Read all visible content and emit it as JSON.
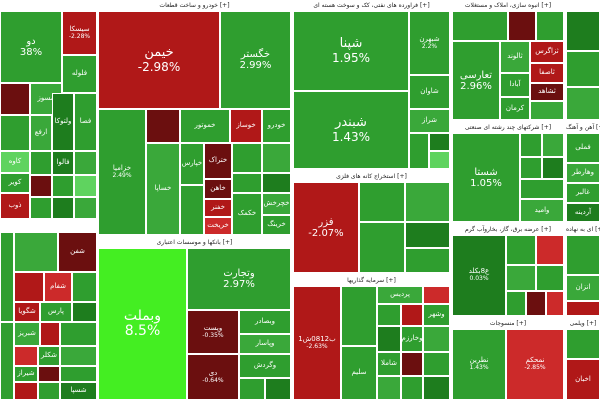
{
  "sectors": {
    "s1": {
      "title": "",
      "tiles": [
        {
          "name": "دو",
          "change": "38%"
        },
        {
          "name": "سیسکا",
          "change": "-2.28%"
        },
        {
          "name": "مسوز"
        },
        {
          "name": "فلوله"
        },
        {
          "name": "ارفع"
        },
        {
          "name": "ولتوکا"
        },
        {
          "name": "فصا"
        },
        {
          "name": "فالوا"
        },
        {
          "name": "کاوه"
        },
        {
          "name": "کویر"
        },
        {
          "name": "ذوب"
        }
      ]
    },
    "s2": {
      "title": "خودرو و ساخت قطعات [+]",
      "tiles": [
        {
          "name": "خیمن",
          "change": "-2.98%"
        },
        {
          "name": "خگستر",
          "change": "2.99%"
        },
        {
          "name": "خودرو"
        },
        {
          "name": "خساپا"
        },
        {
          "name": "خزامیا",
          "change": "2.49%"
        },
        {
          "name": "خموتور"
        },
        {
          "name": "خوساز"
        },
        {
          "name": "خپارس"
        },
        {
          "name": "ختراک"
        },
        {
          "name": "خاهن"
        },
        {
          "name": "خفنر"
        },
        {
          "name": "خریخت"
        },
        {
          "name": "خکمک"
        },
        {
          "name": "خچرخش"
        },
        {
          "name": "خرینگ"
        }
      ]
    },
    "s3": {
      "title": "فراورده های نفتی، کک و سوخت هسته ای [+]",
      "tiles": [
        {
          "name": "شپنا",
          "change": "1.95%"
        },
        {
          "name": "شبندر",
          "change": "1.43%"
        },
        {
          "name": "شاوان"
        },
        {
          "name": "شراز"
        },
        {
          "name": "شپاس"
        },
        {
          "name": "شبهرن",
          "change": "2.2%"
        },
        {
          "name": "شسپا"
        },
        {
          "name": "شنفت"
        }
      ]
    },
    "s4": {
      "title": "انبوه سازی، املاک و مستغلات [+]",
      "tiles": [
        {
          "name": "ثمان"
        },
        {
          "name": "وآذر"
        },
        {
          "name": "ثامان"
        },
        {
          "name": "ثاخت"
        },
        {
          "name": "تعارسی",
          "change": "2.96%"
        },
        {
          "name": "ثالوند"
        },
        {
          "name": "آبادا"
        },
        {
          "name": "ثعمرا"
        },
        {
          "name": "ثزاگرس"
        },
        {
          "name": "ثاصفا"
        },
        {
          "name": "ثشاهد"
        },
        {
          "name": "کرمان"
        },
        {
          "name": "ثنوسا"
        }
      ]
    },
    "s5": {
      "title": "",
      "tiles": [
        {
          "name": "ل"
        },
        {
          "name": "ل"
        },
        {
          "name": "ل"
        }
      ]
    },
    "s6": {
      "title": "بانکها و موسسات اعتباری [+]",
      "tiles": [
        {
          "name": "وبملت",
          "change": "8.5%"
        },
        {
          "name": "وتجارت",
          "change": "2.97%"
        },
        {
          "name": "وبصادر"
        },
        {
          "name": "وپست",
          "change": "-0.35%"
        },
        {
          "name": "وبمن"
        },
        {
          "name": "وپاسار"
        },
        {
          "name": "وگردش"
        },
        {
          "name": "وسینا"
        },
        {
          "name": "دی",
          "change": "-0.64%"
        },
        {
          "name": "وکار"
        }
      ]
    },
    "s7": {
      "title": "استخراج کانه های فلزی [+]",
      "tiles": [
        {
          "name": "فزر",
          "change": "-2.07%"
        },
        {
          "name": "کگهر"
        },
        {
          "name": "کچاد"
        },
        {
          "name": "کگل"
        },
        {
          "name": "کروی"
        },
        {
          "name": "کاما"
        },
        {
          "name": "کبافق"
        }
      ]
    },
    "s8": {
      "title": "شرکتهای چند رشته ای صنعتی [+]",
      "tiles": [
        {
          "name": "شستا",
          "change": "1.05%"
        },
        {
          "name": "وصنا"
        },
        {
          "name": "رکیش"
        },
        {
          "name": "وتوکا"
        },
        {
          "name": "ومعادن"
        },
        {
          "name": "وامید"
        },
        {
          "name": "وصندوق"
        }
      ]
    },
    "s9": {
      "title": "آهن و آهنگ [+]",
      "tiles": [
        {
          "name": "فملی"
        },
        {
          "name": "وهارطر"
        },
        {
          "name": "غالبر"
        },
        {
          "name": "آردینه"
        }
      ]
    },
    "s10": {
      "title": "عرضه برق، گاز، بخاروآب گرم [+]",
      "tiles": [
        {
          "name": "ع8بكلد",
          "change": "0.03%"
        },
        {
          "name": "بکام"
        },
        {
          "name": "بموتو"
        },
        {
          "name": "بجهرم"
        },
        {
          "name": "بترانس"
        },
        {
          "name": "بپیوند"
        }
      ]
    },
    "s11": {
      "title": "ای به نهاده [+]",
      "tiles": [
        {
          "name": "انزان"
        },
        {
          "name": "الیت"
        },
        {
          "name": "ازبه"
        }
      ]
    },
    "s12": {
      "title": "",
      "tiles": [
        {
          "name": "شفن"
        },
        {
          "name": "شگویا"
        },
        {
          "name": "شفام"
        },
        {
          "name": "شبریز"
        },
        {
          "name": "شکلر"
        },
        {
          "name": "شیراز"
        },
        {
          "name": "پارس"
        },
        {
          "name": "شسپا"
        }
      ]
    },
    "s13": {
      "title": "سرمایه گذاریها [+]",
      "tiles": [
        {
          "name": "ب0812ش1",
          "change": "-2.63%"
        },
        {
          "name": "وغدیر"
        },
        {
          "name": "پردیس"
        },
        {
          "name": "سلیم"
        },
        {
          "name": "وبوعلی"
        },
        {
          "name": "شاملا"
        },
        {
          "name": "وخارزم"
        },
        {
          "name": "وسپه"
        },
        {
          "name": "وسپهر"
        },
        {
          "name": "وشهر"
        },
        {
          "name": "ونیکی"
        }
      ]
    },
    "s14": {
      "title": "منسوجات [+]",
      "tiles": [
        {
          "name": "نطرین",
          "change": "1.43%"
        },
        {
          "name": "نمحکم",
          "change": "-2.85%"
        },
        {
          "name": "نبروج"
        },
        {
          "name": "نساچی"
        }
      ]
    },
    "s15": {
      "title": "ویلمی [+]",
      "tiles": [
        {
          "name": "اخبان"
        }
      ]
    }
  }
}
